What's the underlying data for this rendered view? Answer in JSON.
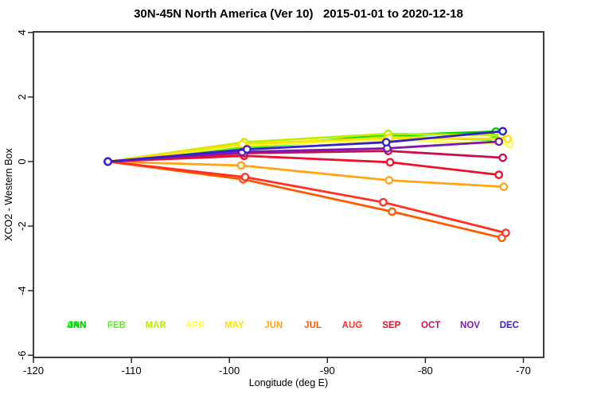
{
  "title": "30N-45N North America (Ver 10)   2015-01-01 to 2020-12-18",
  "chart_data": {
    "type": "line",
    "title": "30N-45N North America (Ver 10)   2015-01-01 to 2020-12-18",
    "xlabel": "Longitude (deg E)",
    "ylabel": "XCO2 - Western Box",
    "xlim": [
      -120,
      -68
    ],
    "ylim": [
      -6.1,
      4.0
    ],
    "x_ticks": [
      -120,
      -110,
      -100,
      -90,
      -80,
      -70
    ],
    "y_ticks": [
      4,
      2,
      0,
      -2,
      -4,
      -6
    ],
    "grid": false,
    "marker": "open-circle",
    "legend_position": "bottom inside plot area",
    "axis_color": "#2a2a2a",
    "series": [
      {
        "name": "ANN",
        "color": "#00FF00",
        "x": [
          -112.4,
          -98.5,
          -83.9,
          -72.9
        ],
        "y": [
          0.0,
          0.45,
          0.8,
          0.9
        ]
      },
      {
        "name": "JAN",
        "color": "#00C800",
        "x": [
          -112.4,
          -98.5,
          -83.9,
          -72.8
        ],
        "y": [
          0.0,
          0.46,
          0.81,
          0.93
        ]
      },
      {
        "name": "FEB",
        "color": "#55EE22",
        "x": [
          -112.4,
          -98.6,
          -83.9,
          -73.0
        ],
        "y": [
          0.0,
          0.42,
          0.78,
          0.67
        ]
      },
      {
        "name": "MAR",
        "color": "#BBEE00",
        "x": [
          -112.4,
          -98.5,
          -83.8,
          -72.3
        ],
        "y": [
          0.0,
          0.6,
          0.86,
          0.82
        ]
      },
      {
        "name": "APR",
        "color": "#FFFF4D",
        "x": [
          -112.4,
          -98.6,
          -83.6,
          -71.4
        ],
        "y": [
          0.0,
          0.5,
          0.68,
          0.54
        ]
      },
      {
        "name": "MAY",
        "color": "#FFE100",
        "x": [
          -112.4,
          -98.7,
          -83.7,
          -71.6
        ],
        "y": [
          0.0,
          0.54,
          0.74,
          0.7
        ]
      },
      {
        "name": "JUN",
        "color": "#FFA515",
        "x": [
          -112.4,
          -98.8,
          -83.7,
          -72.0
        ],
        "y": [
          0.0,
          -0.12,
          -0.58,
          -0.78
        ]
      },
      {
        "name": "JUL",
        "color": "#FF5A00",
        "x": [
          -112.4,
          -98.6,
          -83.4,
          -72.2
        ],
        "y": [
          0.0,
          -0.55,
          -1.55,
          -2.36
        ]
      },
      {
        "name": "AUG",
        "color": "#FF3024",
        "x": [
          -112.4,
          -98.4,
          -84.3,
          -71.8
        ],
        "y": [
          0.0,
          -0.48,
          -1.26,
          -2.21
        ]
      },
      {
        "name": "SEP",
        "color": "#F00E28",
        "x": [
          -112.4,
          -98.5,
          -83.6,
          -72.5
        ],
        "y": [
          0.0,
          0.18,
          -0.02,
          -0.41
        ]
      },
      {
        "name": "OCT",
        "color": "#C81050",
        "x": [
          -112.4,
          -98.5,
          -83.8,
          -72.1
        ],
        "y": [
          0.0,
          0.26,
          0.33,
          0.12
        ]
      },
      {
        "name": "NOV",
        "color": "#7D1AAE",
        "x": [
          -112.4,
          -98.7,
          -83.9,
          -72.5
        ],
        "y": [
          0.0,
          0.3,
          0.41,
          0.62
        ]
      },
      {
        "name": "DEC",
        "color": "#3520CE",
        "x": [
          -112.4,
          -98.2,
          -84.0,
          -72.1
        ],
        "y": [
          0.0,
          0.38,
          0.6,
          0.94
        ]
      }
    ]
  },
  "legend": {
    "ann_overlay": {
      "label": "ANN",
      "color": "#00FF00"
    },
    "items": [
      {
        "label": "JAN",
        "color": "#00C800"
      },
      {
        "label": "FEB",
        "color": "#55EE22"
      },
      {
        "label": "MAR",
        "color": "#BBEE00"
      },
      {
        "label": "APR",
        "color": "#FFFF4D"
      },
      {
        "label": "MAY",
        "color": "#FFE100"
      },
      {
        "label": "JUN",
        "color": "#FFA515"
      },
      {
        "label": "JUL",
        "color": "#FF5A00"
      },
      {
        "label": "AUG",
        "color": "#FF3024"
      },
      {
        "label": "SEP",
        "color": "#F00E28"
      },
      {
        "label": "OCT",
        "color": "#C81050"
      },
      {
        "label": "NOV",
        "color": "#7D1AAE"
      },
      {
        "label": "DEC",
        "color": "#3520CE"
      }
    ]
  }
}
